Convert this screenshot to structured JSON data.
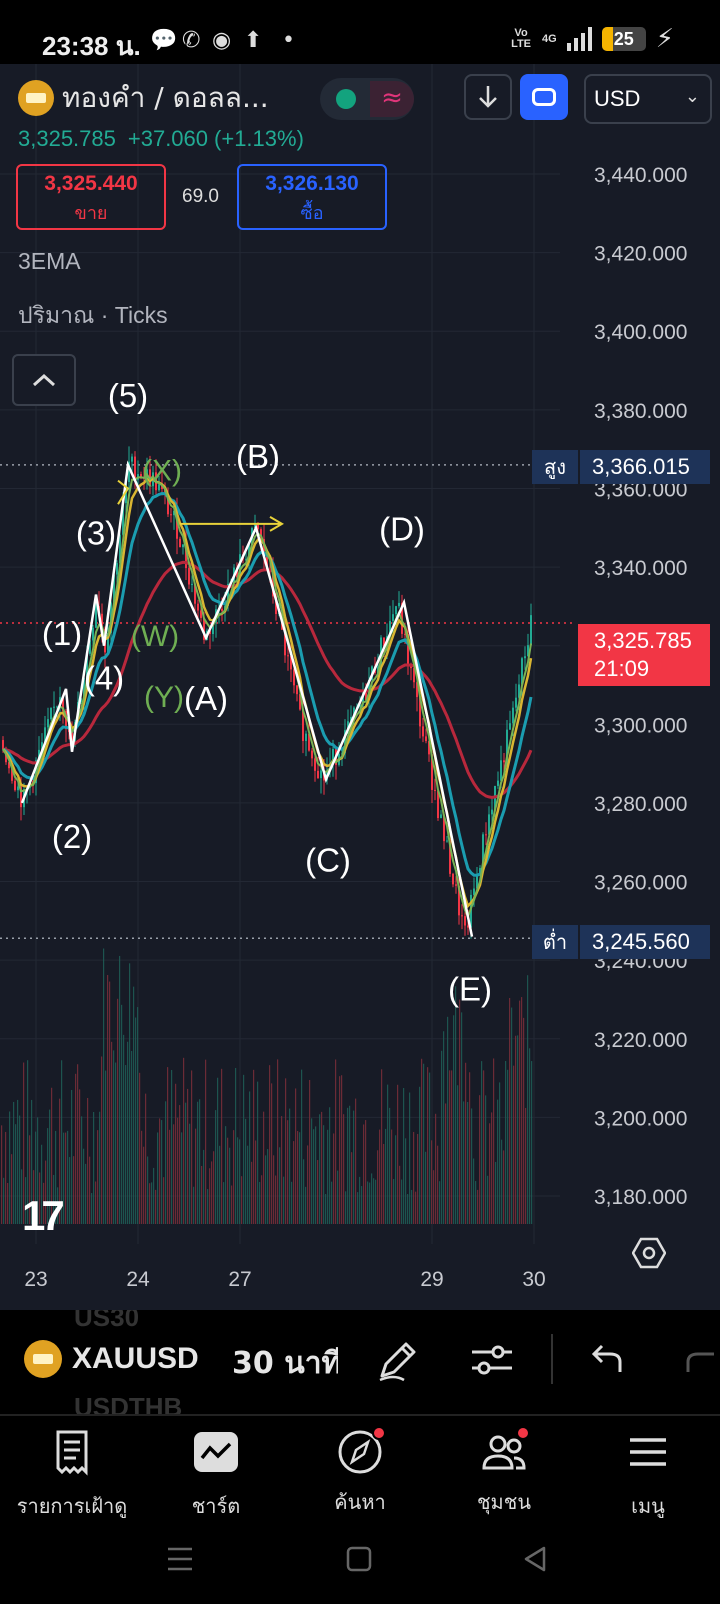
{
  "status_bar": {
    "time": "23:38 น.",
    "network_label": "Vo LTE",
    "signal_label": "4G",
    "battery": "25",
    "battery_level": 0.25
  },
  "header": {
    "symbol_name": "ทองคำ / ดอลล...",
    "currency": "USD",
    "last_price": "3,325.785",
    "change": "+37.060",
    "change_pct": "(+1.13%)",
    "sell_price": "3,325.440",
    "sell_label": "ขาย",
    "spread": "69.0",
    "buy_price": "3,326.130",
    "buy_label": "ซื้อ",
    "colors": {
      "up": "#22ab94",
      "down": "#f23645",
      "accent": "#2962ff"
    }
  },
  "indicators": {
    "ema": "3EMA",
    "volume": "ปริมาณ · Ticks"
  },
  "price_axis": {
    "high_label": "สูง",
    "high_value": "3,366.015",
    "low_label": "ต่ำ",
    "low_value": "3,245.560",
    "current_value": "3,325.785",
    "countdown": "21:09"
  },
  "chart_data": {
    "type": "candlestick",
    "x_ticks": [
      "23",
      "24",
      "27",
      "29",
      "30"
    ],
    "y_ticks": [
      "3,440.000",
      "3,420.000",
      "3,400.000",
      "3,380.000",
      "3,360.000",
      "3,340.000",
      "3,320.000",
      "3,300.000",
      "3,280.000",
      "3,260.000",
      "3,240.000",
      "3,220.000",
      "3,200.000",
      "3,180.000"
    ],
    "ylim": [
      3180,
      3440
    ],
    "high": 3366.015,
    "low": 3245.56,
    "current": 3325.785,
    "wave_points": [
      {
        "label": "(1)",
        "price": 3309
      },
      {
        "label": "(2)",
        "price": 3293
      },
      {
        "label": "(3)",
        "price": 3333
      },
      {
        "label": "(4)",
        "price": 3320
      },
      {
        "label": "(5)",
        "price": 3366
      },
      {
        "label": "(A)",
        "price": 3322
      },
      {
        "label": "(B)",
        "price": 3350
      },
      {
        "label": "(C)",
        "price": 3286
      },
      {
        "label": "(D)",
        "price": 3331
      },
      {
        "label": "(E)",
        "price": 3246
      }
    ],
    "sub_wave_labels": [
      "(W)",
      "(X)",
      "(Y)"
    ]
  },
  "toolbar": {
    "ghost_top": "US30",
    "symbol": "XAUUSD",
    "interval": "30 นาที",
    "ghost_bottom": "USDTHB"
  },
  "bottom_nav": [
    {
      "label": "รายการเฝ้าดู",
      "icon": "watchlist-icon"
    },
    {
      "label": "ชาร์ต",
      "icon": "chart-icon"
    },
    {
      "label": "ค้นหา",
      "icon": "explore-icon"
    },
    {
      "label": "ชุมชน",
      "icon": "community-icon"
    },
    {
      "label": "เมนู",
      "icon": "menu-icon"
    }
  ]
}
